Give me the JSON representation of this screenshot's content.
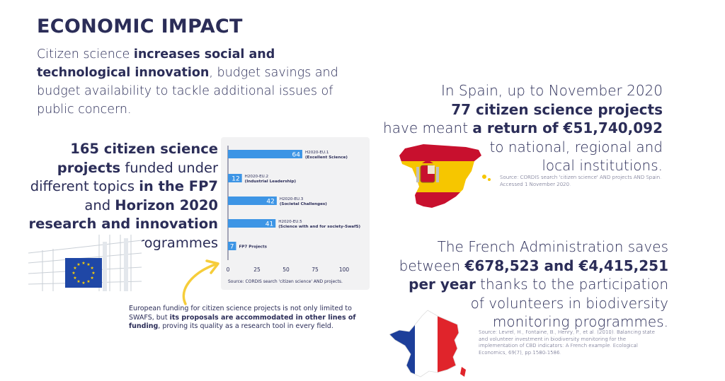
{
  "header": {
    "title": "ECONOMIC IMPACT",
    "intro_1": "Citizen science ",
    "intro_bold": "increases social and technological innovation",
    "intro_2": ", budget savings and budget availability to tackle additional issues of public concern."
  },
  "funded": {
    "count_bold": "165",
    "p1_bold": " citizen science projects",
    "p2": " funded under different topics ",
    "p3_bold": "in the FP7",
    "p4": " and ",
    "p5_bold": "Horizon 2020 research and innovation",
    "p6": " programmes"
  },
  "chart_data": {
    "type": "bar",
    "orientation": "horizontal",
    "categories": [
      [
        "H2020-EU.1",
        "(Excellent Science)"
      ],
      [
        "H2020-EU.2",
        "(Industrial Leadership)"
      ],
      [
        "H2020-EU.3",
        "(Societal Challenges)"
      ],
      [
        "H2020-EU.5",
        "(Science with and for society-SwafS)"
      ],
      [
        "FP7 Projects"
      ]
    ],
    "values": [
      64,
      12,
      42,
      41,
      7
    ],
    "xlim": [
      0,
      100
    ],
    "xticks": [
      0,
      25,
      50,
      75,
      100
    ],
    "source": "Source:  CORDIS search 'citizen science' AND projects.",
    "bar_color": "#3d95e5"
  },
  "funding_note": {
    "p1": "European funding for citizen science projects is not only limited to SWAFS, but ",
    "bold": "its proposals are accommodated in other lines of funding",
    "p2": ", proving its quality as a research tool in every field."
  },
  "spain": {
    "line1": "In Spain, up to November 2020",
    "line2_bold": "77 citizen science projects",
    "line3a": "have meant ",
    "line3_bold": "a return of €51,740,092",
    "line4": "to national, regional and",
    "line5": "local institutions.",
    "source": "Source:  CORDIS search 'citizen science' AND projects AND Spain. Accessed 1 November 2020."
  },
  "france": {
    "line1": "The French Administration saves",
    "line2a": "between ",
    "line2_bold": "€678,523 and €4,415,251",
    "line3_bold": "per year",
    "line3b": " thanks to the participation",
    "line4": "of volunteers in biodiversity",
    "line5": "monitoring programmes.",
    "source": "Source: Levrel, H., Fontaine, B., Henry, P., et al. (2010). Balancing state and volunteer investment in biodiversity monitoring for the implementation of CBD indicators: A French example. Ecological Economics, 69(7), pp.1580-1586."
  },
  "colors": {
    "navy": "#2b2d58",
    "bar_blue": "#3d95e5",
    "arrow_yellow": "#f6cd3a",
    "eu_blue": "#1f47a6",
    "eu_star": "#ffd200",
    "spain_red": "#c8102e",
    "spain_yellow": "#f6c600",
    "france_blue": "#1d3f9a",
    "france_red": "#e0242b"
  }
}
